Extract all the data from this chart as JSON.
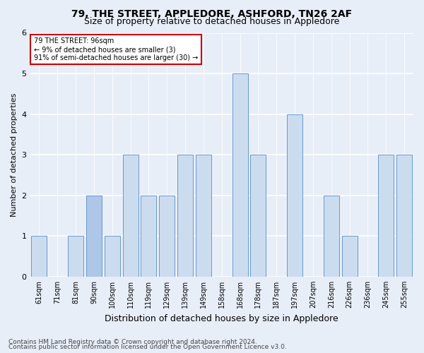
{
  "title": "79, THE STREET, APPLEDORE, ASHFORD, TN26 2AF",
  "subtitle": "Size of property relative to detached houses in Appledore",
  "xlabel": "Distribution of detached houses by size in Appledore",
  "ylabel": "Number of detached properties",
  "categories": [
    "61sqm",
    "71sqm",
    "81sqm",
    "90sqm",
    "100sqm",
    "110sqm",
    "119sqm",
    "129sqm",
    "139sqm",
    "149sqm",
    "158sqm",
    "168sqm",
    "178sqm",
    "187sqm",
    "197sqm",
    "207sqm",
    "216sqm",
    "226sqm",
    "236sqm",
    "245sqm",
    "255sqm"
  ],
  "values": [
    1,
    0,
    1,
    2,
    1,
    3,
    2,
    2,
    3,
    3,
    0,
    5,
    3,
    0,
    4,
    0,
    2,
    1,
    0,
    3,
    3
  ],
  "highlight_index": 3,
  "highlight_bar_color": "#aec6e8",
  "normal_bar_color": "#ccdcef",
  "bar_edge_color": "#6699cc",
  "ylim": [
    0,
    6
  ],
  "yticks": [
    0,
    1,
    2,
    3,
    4,
    5,
    6
  ],
  "annotation_text": "79 THE STREET: 96sqm\n← 9% of detached houses are smaller (3)\n91% of semi-detached houses are larger (30) →",
  "annotation_box_color": "#ffffff",
  "annotation_box_edge": "#cc0000",
  "footer_line1": "Contains HM Land Registry data © Crown copyright and database right 2024.",
  "footer_line2": "Contains public sector information licensed under the Open Government Licence v3.0.",
  "background_color": "#e8eef8",
  "plot_background": "#e8eef8",
  "grid_color": "#ffffff",
  "title_fontsize": 10,
  "subtitle_fontsize": 9,
  "axis_label_fontsize": 8,
  "tick_fontsize": 7,
  "footer_fontsize": 6.5
}
